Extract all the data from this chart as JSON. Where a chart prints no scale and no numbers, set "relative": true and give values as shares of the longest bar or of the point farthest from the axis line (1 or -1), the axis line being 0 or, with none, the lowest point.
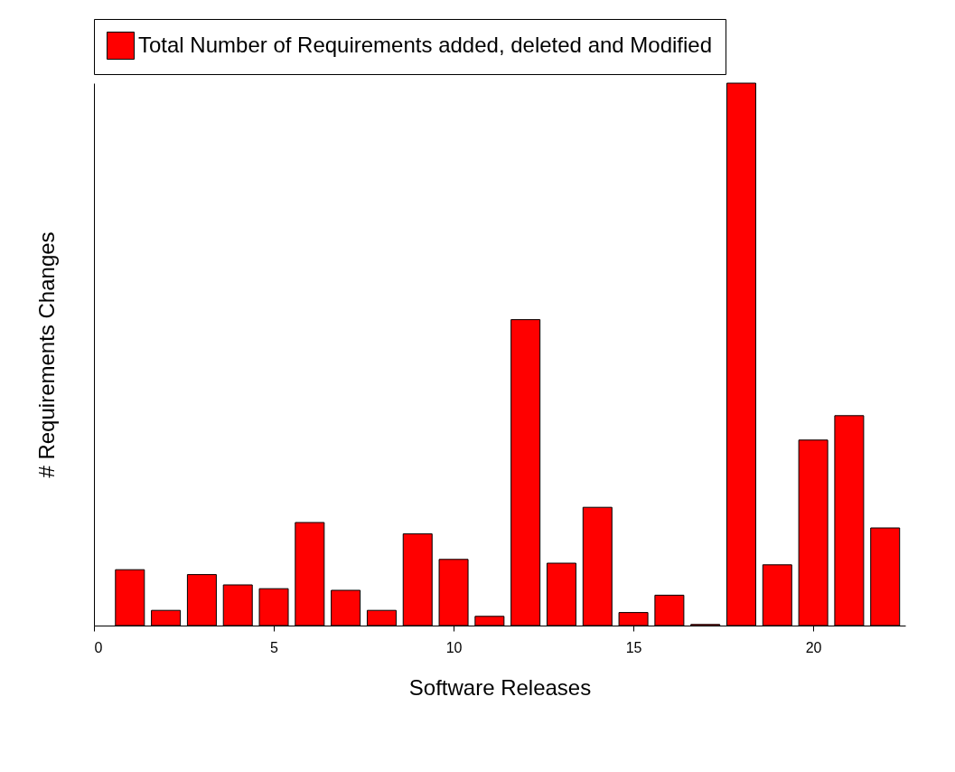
{
  "chart_data": {
    "type": "bar",
    "relative": true,
    "xlabel": "Software Releases",
    "ylabel": "# Requirements Changes",
    "x": [
      1,
      2,
      3,
      4,
      5,
      6,
      7,
      8,
      9,
      10,
      11,
      12,
      13,
      14,
      15,
      16,
      17,
      18,
      19,
      20,
      21,
      22
    ],
    "series": [
      {
        "name": "Total Number of Requirements added, deleted and Modified",
        "color": "#ff0000",
        "values": [
          0.103,
          0.028,
          0.094,
          0.075,
          0.068,
          0.19,
          0.065,
          0.028,
          0.169,
          0.122,
          0.017,
          0.564,
          0.115,
          0.218,
          0.024,
          0.056,
          0.002,
          1,
          0.112,
          0.342,
          0.387,
          0.18
        ]
      }
    ],
    "xlim": [
      0,
      22.56
    ],
    "xticks": [
      0,
      5,
      10,
      15,
      20
    ],
    "grid": false,
    "legend": "top"
  }
}
